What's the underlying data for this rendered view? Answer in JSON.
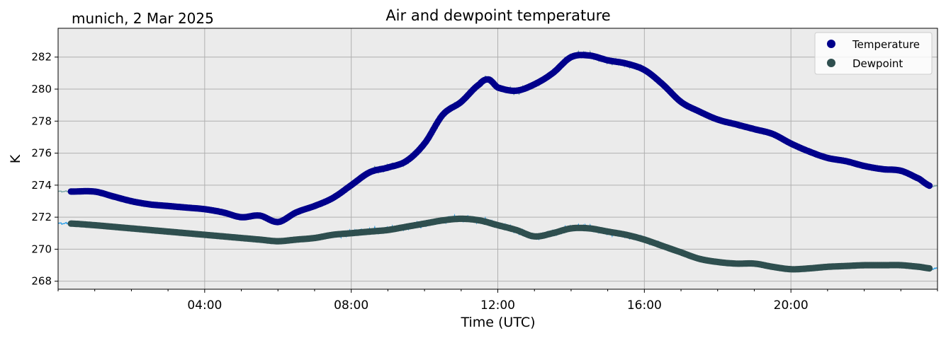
{
  "chart_data": {
    "type": "line",
    "title": "Air and dewpoint temperature",
    "subtitle": "munich, 2 Mar 2025",
    "xlabel": "Time (UTC)",
    "ylabel": "K",
    "x_unit": "hours UTC",
    "xlim": [
      0,
      24
    ],
    "ylim": [
      267.5,
      283.8
    ],
    "x_ticks": [
      4,
      8,
      12,
      16,
      20
    ],
    "x_tick_labels": [
      "04:00",
      "08:00",
      "12:00",
      "16:00",
      "20:00"
    ],
    "y_ticks": [
      268,
      270,
      272,
      274,
      276,
      278,
      280,
      282
    ],
    "y_tick_labels": [
      "268",
      "270",
      "272",
      "274",
      "276",
      "278",
      "280",
      "282"
    ],
    "grid": true,
    "legend_position": "top-right",
    "background": "#ebebeb",
    "series": [
      {
        "name": "Temperature",
        "color": "#00008b",
        "raw_color": "#78a6a8",
        "marker": "circle",
        "x": [
          0.35,
          1.0,
          1.5,
          2.0,
          2.5,
          3.0,
          3.5,
          4.0,
          4.5,
          5.0,
          5.5,
          6.0,
          6.5,
          7.0,
          7.5,
          8.0,
          8.5,
          9.0,
          9.5,
          10.0,
          10.5,
          11.0,
          11.5,
          11.75,
          12.0,
          12.5,
          13.0,
          13.5,
          14.0,
          14.5,
          15.0,
          15.5,
          16.0,
          16.5,
          17.0,
          17.5,
          18.0,
          18.5,
          19.0,
          19.5,
          20.0,
          20.5,
          21.0,
          21.5,
          22.0,
          22.5,
          23.0,
          23.5,
          23.8
        ],
        "values": [
          273.6,
          273.6,
          273.3,
          273.0,
          272.8,
          272.7,
          272.6,
          272.5,
          272.3,
          272.0,
          272.1,
          271.7,
          272.3,
          272.7,
          273.2,
          274.0,
          274.8,
          275.1,
          275.5,
          276.6,
          278.4,
          279.2,
          280.3,
          280.6,
          280.1,
          279.9,
          280.3,
          281.0,
          282.0,
          282.1,
          281.8,
          281.6,
          281.2,
          280.3,
          279.2,
          278.6,
          278.1,
          277.8,
          277.5,
          277.2,
          276.6,
          276.1,
          275.7,
          275.5,
          275.2,
          275.0,
          274.9,
          274.4,
          273.95
        ]
      },
      {
        "name": "Dewpoint",
        "color": "#2f4f4f",
        "raw_color": "#2b9fe8",
        "marker": "circle",
        "x": [
          0.35,
          1.0,
          1.5,
          2.0,
          2.5,
          3.0,
          3.5,
          4.0,
          4.5,
          5.0,
          5.5,
          6.0,
          6.5,
          7.0,
          7.5,
          8.0,
          8.5,
          9.0,
          9.5,
          10.0,
          10.5,
          11.0,
          11.5,
          12.0,
          12.5,
          13.0,
          13.5,
          14.0,
          14.5,
          15.0,
          15.5,
          16.0,
          16.5,
          17.0,
          17.5,
          18.0,
          18.5,
          19.0,
          19.5,
          20.0,
          20.5,
          21.0,
          21.5,
          22.0,
          22.5,
          23.0,
          23.5,
          23.8
        ],
        "values": [
          271.6,
          271.5,
          271.4,
          271.3,
          271.2,
          271.1,
          271.0,
          270.9,
          270.8,
          270.7,
          270.6,
          270.5,
          270.6,
          270.7,
          270.9,
          271.0,
          271.1,
          271.2,
          271.4,
          271.6,
          271.8,
          271.9,
          271.8,
          271.5,
          271.2,
          270.8,
          271.0,
          271.3,
          271.3,
          271.1,
          270.9,
          270.6,
          270.2,
          269.8,
          269.4,
          269.2,
          269.1,
          269.1,
          268.9,
          268.75,
          268.8,
          268.9,
          268.95,
          269.0,
          269.0,
          269.0,
          268.9,
          268.8
        ]
      }
    ]
  }
}
